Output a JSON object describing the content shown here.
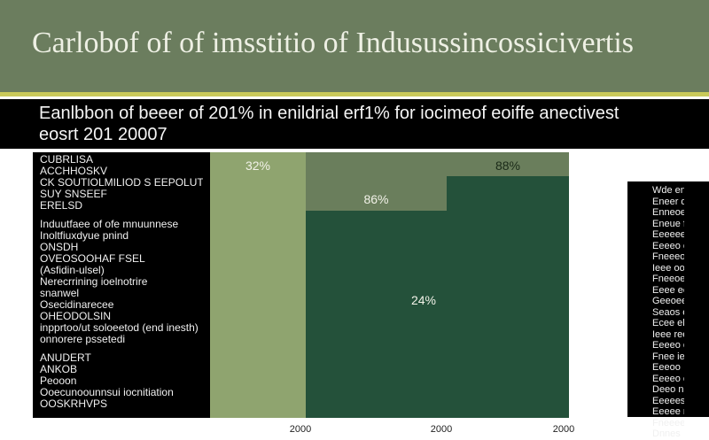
{
  "header": {
    "title": "Carlobof of of imsstitio of Indusussincossicivertis"
  },
  "subtitle": {
    "line1": "Eanlbbon of beeer of 201% in enildrial erf1% for iocimeof eoiffe anectivest",
    "line2": "eosrt 201 20007"
  },
  "left_panel": {
    "lines": [
      "CUBRLISA",
      "ACCHHOSKV",
      "CK SOUTIOLMILIOD S EEPOLUTO",
      "SUY SNSEEF",
      "ERELSD",
      "",
      "Induutfaee of ofe mnuunnese",
      "Inoltfiuxdyue pnind",
      "ONSDH",
      "OVEOSOOHAF FSEL",
      "(Asfidin-ulsel)",
      "Nerecrrining ioelnotrire",
      "snanwel",
      "Osecidinarecee",
      "OHEODOLSIN",
      "inpprtoo/ut soloeetod (end inesth)",
      "onnorere pssetedi",
      "",
      "ANUDERT",
      "ANKOB",
      "Peooon",
      "Ooecunoounnsui iocnitiation",
      "OOSKRHVPS"
    ]
  },
  "right_panel": {
    "lines": [
      "Wde enlo",
      "Eneer dhrote",
      "Enneoe edeanre",
      "Eneue ffeeowe",
      "Eeeeeeees ekhr",
      "Eeeeo eeleeer",
      "Fneeeo ooeee",
      "Ieee oo rendee",
      "Fneeoesi eeer",
      "Eeee eoeeee",
      "Geeoeeieeee",
      "Seaos eneon",
      "Ecee elneo",
      "Ieee reeeoes",
      "Eeeeo onnvee",
      "Fnee ieeo",
      "Eeeoo",
      "Eeeeo eeo",
      "Deeo nnee",
      "Eeeeeseeeooe",
      "Eeeee nniee",
      "Fneeeeoneee",
      "Dnnes"
    ]
  },
  "colors": {
    "header_bg": "#6b7d5e",
    "accent": "#c9c95a",
    "light_green": "#8fa46f",
    "mid_green": "#6a7e5c",
    "dark_green": "#24513a"
  },
  "chart_data": {
    "type": "bar",
    "ylim": [
      0,
      100
    ],
    "bars": [
      {
        "name": "col1",
        "value": 100,
        "label": "32%",
        "tick": "2000",
        "color": "#8fa46f",
        "label_color": "#f2f2e8"
      },
      {
        "name": "col2-back",
        "value": 100,
        "label": "",
        "tick": "",
        "color": "#6a7e5c",
        "label_color": "#ffffff"
      },
      {
        "name": "col2-front",
        "value": 78,
        "label": "86%",
        "tick": "2000",
        "color": "#24513a",
        "label_color": "#f2f2e8"
      },
      {
        "name": "col3-back",
        "value": 100,
        "label": "",
        "tick": "",
        "color": "#6a7e5c",
        "label_color": "#ffffff"
      },
      {
        "name": "col3-front",
        "value": 91,
        "label": "88%",
        "tick": "2000",
        "color": "#24513a",
        "label_color": "#1a2a18"
      }
    ],
    "annotation": "24%"
  }
}
